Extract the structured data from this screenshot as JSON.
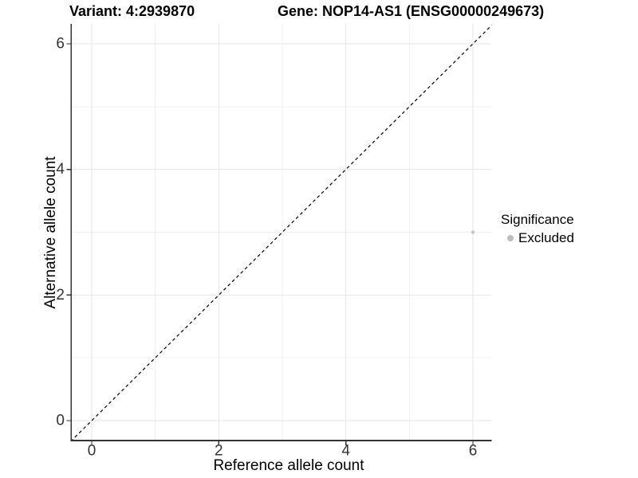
{
  "header": {
    "variant_title": "Variant: 4:2939870",
    "gene_title": "Gene: NOP14-AS1 (ENSG00000249673)"
  },
  "axes": {
    "x_label": "Reference allele count",
    "y_label": "Alternative allele count"
  },
  "legend": {
    "title": "Significance",
    "items": [
      {
        "label": "Excluded",
        "marker_color": "#bdbdbd"
      }
    ]
  },
  "chart_data": {
    "type": "scatter",
    "title": "Variant: 4:2939870 / Gene: NOP14-AS1 (ENSG00000249673)",
    "xlabel": "Reference allele count",
    "ylabel": "Alternative allele count",
    "xlim": [
      -0.32,
      6.3
    ],
    "ylim": [
      -0.32,
      6.32
    ],
    "x_ticks": [
      0,
      2,
      4,
      6
    ],
    "x_minor_ticks": [
      1,
      3,
      5
    ],
    "y_ticks": [
      0,
      2,
      4,
      6
    ],
    "y_minor_ticks": [
      1,
      3,
      5
    ],
    "grid": "major and minor gridlines on white panel",
    "legend_position": "right",
    "reference_line": {
      "type": "identity y=x",
      "style": "dashed",
      "color": "#000000"
    },
    "series": [
      {
        "name": "Excluded",
        "marker_color": "#c2c2c2",
        "points": [
          {
            "x": 6,
            "y": 3
          }
        ]
      }
    ],
    "colors": {
      "grid_major": "#e6e6e6",
      "grid_minor": "#f1f1f1",
      "axis_line": "#333333",
      "tick_text": "#333333",
      "dashed_line": "#000000"
    }
  }
}
